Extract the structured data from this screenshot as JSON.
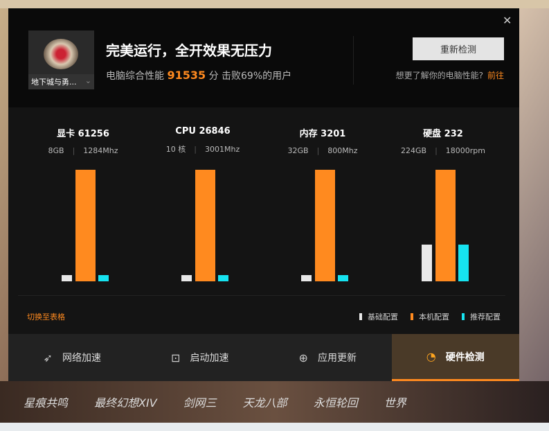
{
  "header": {
    "close_icon": "close-icon",
    "game_name": "地下城与勇...",
    "title": "完美运行，全开效果无压力",
    "score_prefix": "电脑综合性能",
    "score": "91535",
    "score_suffix": "分 击败69%的用户",
    "recheck_label": "重新检测",
    "more_text": "想更了解你的电脑性能?",
    "more_link": "前往"
  },
  "colors": {
    "base": "#e8e8e8",
    "local": "#ff8a1f",
    "recommended": "#16e3f0"
  },
  "metrics": [
    {
      "title": "显卡  61256",
      "spec1": "8GB",
      "spec2": "1284Mhz",
      "levels": {
        "base": 0.055,
        "local": 1,
        "recommended": 0.055
      }
    },
    {
      "title": "CPU  26846",
      "spec1": "10 核",
      "spec2": "3001Mhz",
      "levels": {
        "base": 0.055,
        "local": 1,
        "recommended": 0.055
      }
    },
    {
      "title": "内存  3201",
      "spec1": "32GB",
      "spec2": "800Mhz",
      "levels": {
        "base": 0.055,
        "local": 1,
        "recommended": 0.055
      }
    },
    {
      "title": "硬盘  232",
      "spec1": "224GB",
      "spec2": "18000rpm",
      "levels": {
        "base": 0.33,
        "local": 1,
        "recommended": 0.33
      }
    }
  ],
  "switch_label": "切换至表格",
  "legend": {
    "base": "基础配置",
    "local": "本机配置",
    "recommended": "推荐配置"
  },
  "tabs": [
    {
      "label": "网络加速",
      "icon": "rocket-icon",
      "active": false
    },
    {
      "label": "启动加速",
      "icon": "boot-icon",
      "active": false
    },
    {
      "label": "应用更新",
      "icon": "upload-icon",
      "active": false
    },
    {
      "label": "硬件检测",
      "icon": "timer-icon",
      "active": true
    }
  ],
  "games": [
    "星痕共鸣",
    "最终幻想XIV",
    "剑网三",
    "天龙八部",
    "永恒轮回",
    "世界"
  ]
}
